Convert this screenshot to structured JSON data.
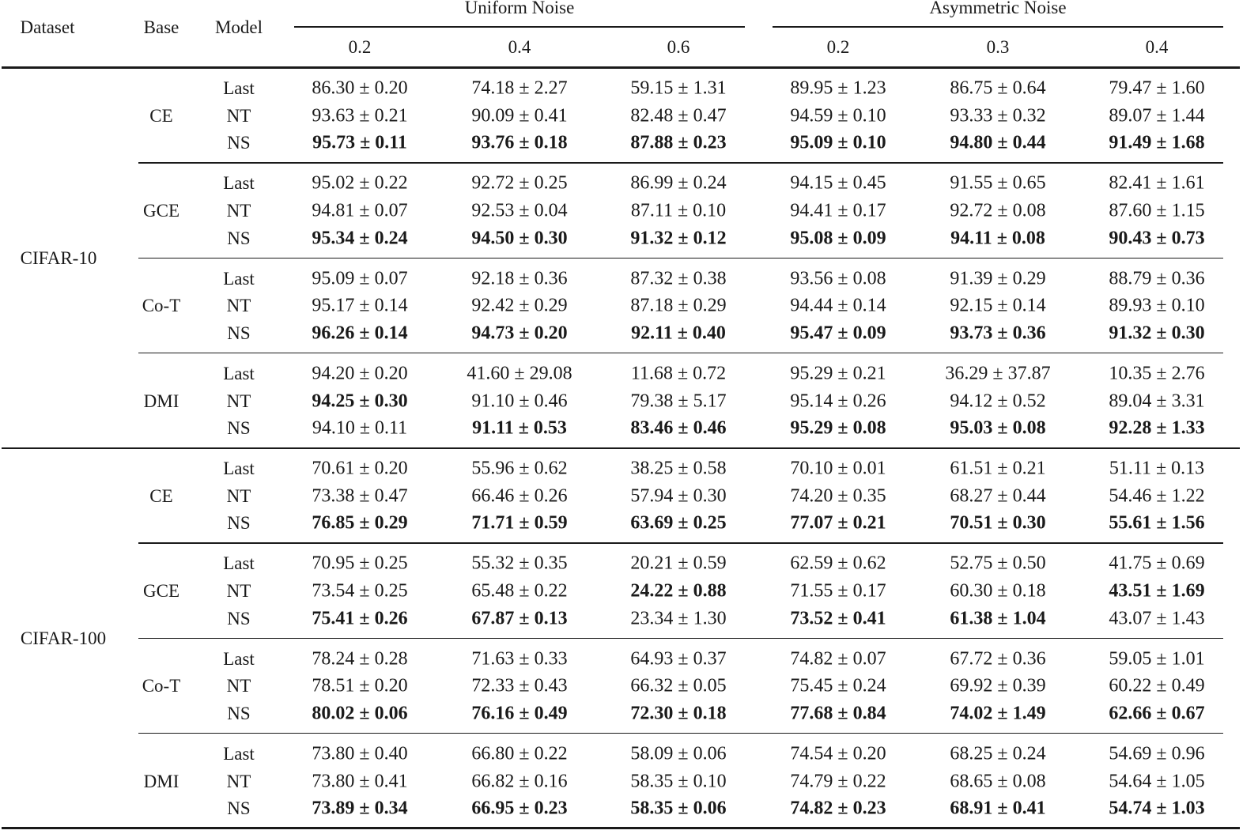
{
  "header": {
    "dataset": "Dataset",
    "base": "Base",
    "model": "Model",
    "groups": [
      {
        "label": "Uniform Noise",
        "levels": [
          "0.2",
          "0.4",
          "0.6"
        ]
      },
      {
        "label": "Asymmetric Noise",
        "levels": [
          "0.2",
          "0.3",
          "0.4"
        ]
      }
    ]
  },
  "datasets": [
    {
      "name": "CIFAR-10",
      "bases": [
        {
          "name": "CE",
          "rows": [
            {
              "model": "Last",
              "cells": [
                [
                  "86.30 ± 0.20",
                  0
                ],
                [
                  "74.18 ± 2.27",
                  0
                ],
                [
                  "59.15 ± 1.31",
                  0
                ],
                [
                  "89.95 ± 1.23",
                  0
                ],
                [
                  "86.75 ± 0.64",
                  0
                ],
                [
                  "79.47 ± 1.60",
                  0
                ]
              ]
            },
            {
              "model": "NT",
              "cells": [
                [
                  "93.63 ± 0.21",
                  0
                ],
                [
                  "90.09 ± 0.41",
                  0
                ],
                [
                  "82.48 ± 0.47",
                  0
                ],
                [
                  "94.59 ± 0.10",
                  0
                ],
                [
                  "93.33 ± 0.32",
                  0
                ],
                [
                  "89.07 ± 1.44",
                  0
                ]
              ]
            },
            {
              "model": "NS",
              "cells": [
                [
                  "95.73 ± 0.11",
                  1
                ],
                [
                  "93.76 ± 0.18",
                  1
                ],
                [
                  "87.88 ± 0.23",
                  1
                ],
                [
                  "95.09 ± 0.10",
                  1
                ],
                [
                  "94.80 ± 0.44",
                  1
                ],
                [
                  "91.49 ± 1.68",
                  1
                ]
              ]
            }
          ]
        },
        {
          "name": "GCE",
          "rows": [
            {
              "model": "Last",
              "cells": [
                [
                  "95.02 ± 0.22",
                  0
                ],
                [
                  "92.72 ± 0.25",
                  0
                ],
                [
                  "86.99 ± 0.24",
                  0
                ],
                [
                  "94.15 ± 0.45",
                  0
                ],
                [
                  "91.55 ± 0.65",
                  0
                ],
                [
                  "82.41 ± 1.61",
                  0
                ]
              ]
            },
            {
              "model": "NT",
              "cells": [
                [
                  "94.81 ± 0.07",
                  0
                ],
                [
                  "92.53 ± 0.04",
                  0
                ],
                [
                  "87.11 ± 0.10",
                  0
                ],
                [
                  "94.41 ± 0.17",
                  0
                ],
                [
                  "92.72 ± 0.08",
                  0
                ],
                [
                  "87.60 ± 1.15",
                  0
                ]
              ]
            },
            {
              "model": "NS",
              "cells": [
                [
                  "95.34 ± 0.24",
                  1
                ],
                [
                  "94.50 ± 0.30",
                  1
                ],
                [
                  "91.32 ± 0.12",
                  1
                ],
                [
                  "95.08 ± 0.09",
                  1
                ],
                [
                  "94.11 ± 0.08",
                  1
                ],
                [
                  "90.43 ± 0.73",
                  1
                ]
              ]
            }
          ]
        },
        {
          "name": "Co-T",
          "rows": [
            {
              "model": "Last",
              "cells": [
                [
                  "95.09 ± 0.07",
                  0
                ],
                [
                  "92.18 ± 0.36",
                  0
                ],
                [
                  "87.32 ± 0.38",
                  0
                ],
                [
                  "93.56 ± 0.08",
                  0
                ],
                [
                  "91.39 ± 0.29",
                  0
                ],
                [
                  "88.79 ± 0.36",
                  0
                ]
              ]
            },
            {
              "model": "NT",
              "cells": [
                [
                  "95.17 ± 0.14",
                  0
                ],
                [
                  "92.42 ± 0.29",
                  0
                ],
                [
                  "87.18 ± 0.29",
                  0
                ],
                [
                  "94.44 ± 0.14",
                  0
                ],
                [
                  "92.15 ± 0.14",
                  0
                ],
                [
                  "89.93 ± 0.10",
                  0
                ]
              ]
            },
            {
              "model": "NS",
              "cells": [
                [
                  "96.26 ± 0.14",
                  1
                ],
                [
                  "94.73 ± 0.20",
                  1
                ],
                [
                  "92.11 ± 0.40",
                  1
                ],
                [
                  "95.47 ± 0.09",
                  1
                ],
                [
                  "93.73 ± 0.36",
                  1
                ],
                [
                  "91.32 ± 0.30",
                  1
                ]
              ]
            }
          ]
        },
        {
          "name": "DMI",
          "rows": [
            {
              "model": "Last",
              "cells": [
                [
                  "94.20 ± 0.20",
                  0
                ],
                [
                  "41.60 ± 29.08",
                  0
                ],
                [
                  "11.68 ± 0.72",
                  0
                ],
                [
                  "95.29 ± 0.21",
                  0
                ],
                [
                  "36.29 ± 37.87",
                  0
                ],
                [
                  "10.35 ± 2.76",
                  0
                ]
              ]
            },
            {
              "model": "NT",
              "cells": [
                [
                  "94.25 ± 0.30",
                  1
                ],
                [
                  "91.10 ± 0.46",
                  0
                ],
                [
                  "79.38 ± 5.17",
                  0
                ],
                [
                  "95.14 ± 0.26",
                  0
                ],
                [
                  "94.12 ± 0.52",
                  0
                ],
                [
                  "89.04 ± 3.31",
                  0
                ]
              ]
            },
            {
              "model": "NS",
              "cells": [
                [
                  "94.10 ± 0.11",
                  0
                ],
                [
                  "91.11 ± 0.53",
                  1
                ],
                [
                  "83.46 ± 0.46",
                  1
                ],
                [
                  "95.29 ± 0.08",
                  1
                ],
                [
                  "95.03 ± 0.08",
                  1
                ],
                [
                  "92.28 ± 1.33",
                  1
                ]
              ]
            }
          ]
        }
      ]
    },
    {
      "name": "CIFAR-100",
      "bases": [
        {
          "name": "CE",
          "rows": [
            {
              "model": "Last",
              "cells": [
                [
                  "70.61 ± 0.20",
                  0
                ],
                [
                  "55.96 ± 0.62",
                  0
                ],
                [
                  "38.25 ± 0.58",
                  0
                ],
                [
                  "70.10 ± 0.01",
                  0
                ],
                [
                  "61.51 ± 0.21",
                  0
                ],
                [
                  "51.11 ± 0.13",
                  0
                ]
              ]
            },
            {
              "model": "NT",
              "cells": [
                [
                  "73.38 ± 0.47",
                  0
                ],
                [
                  "66.46 ± 0.26",
                  0
                ],
                [
                  "57.94 ± 0.30",
                  0
                ],
                [
                  "74.20 ± 0.35",
                  0
                ],
                [
                  "68.27 ± 0.44",
                  0
                ],
                [
                  "54.46 ± 1.22",
                  0
                ]
              ]
            },
            {
              "model": "NS",
              "cells": [
                [
                  "76.85 ± 0.29",
                  1
                ],
                [
                  "71.71 ± 0.59",
                  1
                ],
                [
                  "63.69 ± 0.25",
                  1
                ],
                [
                  "77.07 ± 0.21",
                  1
                ],
                [
                  "70.51 ± 0.30",
                  1
                ],
                [
                  "55.61 ± 1.56",
                  1
                ]
              ]
            }
          ]
        },
        {
          "name": "GCE",
          "rows": [
            {
              "model": "Last",
              "cells": [
                [
                  "70.95 ± 0.25",
                  0
                ],
                [
                  "55.32 ± 0.35",
                  0
                ],
                [
                  "20.21 ± 0.59",
                  0
                ],
                [
                  "62.59 ± 0.62",
                  0
                ],
                [
                  "52.75 ± 0.50",
                  0
                ],
                [
                  "41.75 ± 0.69",
                  0
                ]
              ]
            },
            {
              "model": "NT",
              "cells": [
                [
                  "73.54 ± 0.25",
                  0
                ],
                [
                  "65.48 ± 0.22",
                  0
                ],
                [
                  "24.22 ± 0.88",
                  1
                ],
                [
                  "71.55 ± 0.17",
                  0
                ],
                [
                  "60.30 ± 0.18",
                  0
                ],
                [
                  "43.51 ± 1.69",
                  1
                ]
              ]
            },
            {
              "model": "NS",
              "cells": [
                [
                  "75.41 ± 0.26",
                  1
                ],
                [
                  "67.87 ± 0.13",
                  1
                ],
                [
                  "23.34 ± 1.30",
                  0
                ],
                [
                  "73.52 ± 0.41",
                  1
                ],
                [
                  "61.38 ± 1.04",
                  1
                ],
                [
                  "43.07 ± 1.43",
                  0
                ]
              ]
            }
          ]
        },
        {
          "name": "Co-T",
          "rows": [
            {
              "model": "Last",
              "cells": [
                [
                  "78.24 ± 0.28",
                  0
                ],
                [
                  "71.63 ± 0.33",
                  0
                ],
                [
                  "64.93 ± 0.37",
                  0
                ],
                [
                  "74.82 ± 0.07",
                  0
                ],
                [
                  "67.72 ± 0.36",
                  0
                ],
                [
                  "59.05 ± 1.01",
                  0
                ]
              ]
            },
            {
              "model": "NT",
              "cells": [
                [
                  "78.51 ± 0.20",
                  0
                ],
                [
                  "72.33 ± 0.43",
                  0
                ],
                [
                  "66.32 ± 0.05",
                  0
                ],
                [
                  "75.45 ± 0.24",
                  0
                ],
                [
                  "69.92 ± 0.39",
                  0
                ],
                [
                  "60.22 ± 0.49",
                  0
                ]
              ]
            },
            {
              "model": "NS",
              "cells": [
                [
                  "80.02 ± 0.06",
                  1
                ],
                [
                  "76.16 ± 0.49",
                  1
                ],
                [
                  "72.30 ± 0.18",
                  1
                ],
                [
                  "77.68 ± 0.84",
                  1
                ],
                [
                  "74.02 ± 1.49",
                  1
                ],
                [
                  "62.66 ± 0.67",
                  1
                ]
              ]
            }
          ]
        },
        {
          "name": "DMI",
          "rows": [
            {
              "model": "Last",
              "cells": [
                [
                  "73.80 ± 0.40",
                  0
                ],
                [
                  "66.80 ± 0.22",
                  0
                ],
                [
                  "58.09 ± 0.06",
                  0
                ],
                [
                  "74.54 ± 0.20",
                  0
                ],
                [
                  "68.25 ± 0.24",
                  0
                ],
                [
                  "54.69 ± 0.96",
                  0
                ]
              ]
            },
            {
              "model": "NT",
              "cells": [
                [
                  "73.80 ± 0.41",
                  0
                ],
                [
                  "66.82 ± 0.16",
                  0
                ],
                [
                  "58.35 ± 0.10",
                  0
                ],
                [
                  "74.79 ± 0.22",
                  0
                ],
                [
                  "68.65 ± 0.08",
                  0
                ],
                [
                  "54.64 ± 1.05",
                  0
                ]
              ]
            },
            {
              "model": "NS",
              "cells": [
                [
                  "73.89 ± 0.34",
                  1
                ],
                [
                  "66.95 ± 0.23",
                  1
                ],
                [
                  "58.35 ± 0.06",
                  1
                ],
                [
                  "74.82 ± 0.23",
                  1
                ],
                [
                  "68.91 ± 0.41",
                  1
                ],
                [
                  "54.74 ± 1.03",
                  1
                ]
              ]
            }
          ]
        }
      ]
    }
  ]
}
